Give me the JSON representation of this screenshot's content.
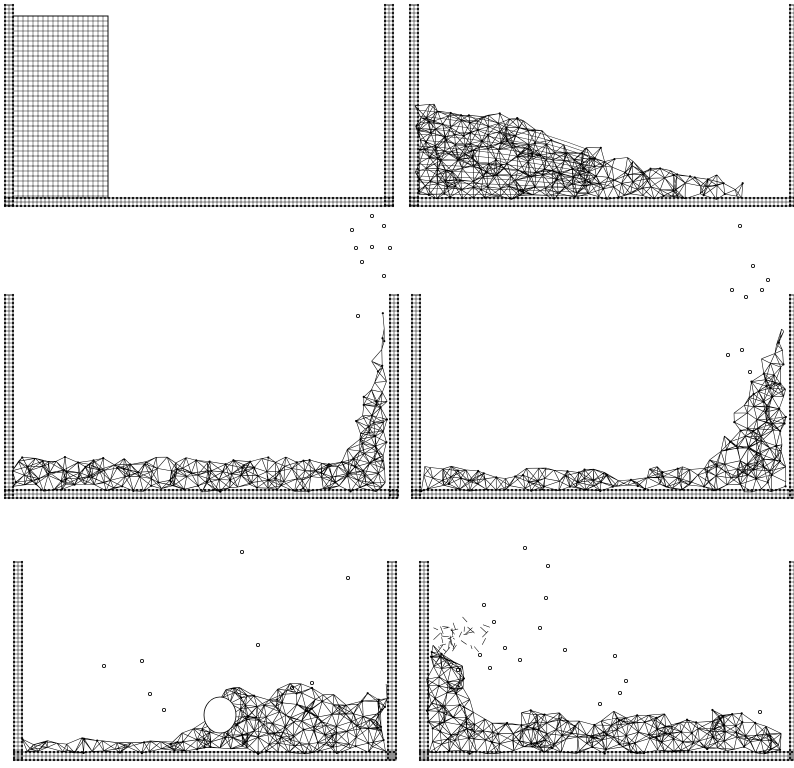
{
  "figure": {
    "panel_count": 6,
    "stroke_color": "#000000",
    "background_color": "#ffffff",
    "panels": [
      {
        "stage": "initial-water-column",
        "style": "grid-block"
      },
      {
        "stage": "collapsing-column",
        "style": "mesh-wedge"
      },
      {
        "stage": "runup-right-wall",
        "style": "mesh-runup-right"
      },
      {
        "stage": "high-runup-right-wall",
        "style": "mesh-runup-right-high"
      },
      {
        "stage": "backward-breaking-wave",
        "style": "mesh-breaking"
      },
      {
        "stage": "runup-left-wall",
        "style": "mesh-runup-left"
      }
    ]
  }
}
